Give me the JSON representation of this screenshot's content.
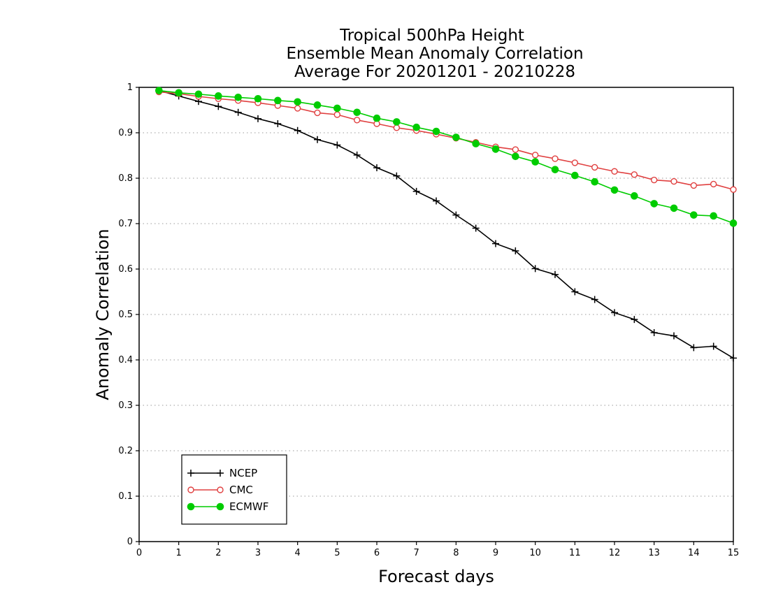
{
  "chart_data": {
    "type": "line",
    "title_lines": [
      "Tropical 500hPa Height",
      "Ensemble Mean Anomaly Correlation",
      "Average For 20201201 - 20210228"
    ],
    "xlabel": "Forecast days",
    "ylabel": "Anomaly Correlation",
    "xlim": [
      0,
      15
    ],
    "ylim": [
      0,
      1
    ],
    "x_ticks": [
      "0",
      "1",
      "2",
      "3",
      "4",
      "5",
      "6",
      "7",
      "8",
      "9",
      "10",
      "11",
      "12",
      "13",
      "14",
      "15"
    ],
    "y_ticks": [
      "0",
      "0.1",
      "0.2",
      "0.3",
      "0.4",
      "0.5",
      "0.6",
      "0.7",
      "0.8",
      "0.9",
      "1"
    ],
    "grid": "horizontal dotted",
    "legend_position": "bottom-left",
    "x": [
      0.5,
      1,
      1.5,
      2,
      2.5,
      3,
      3.5,
      4,
      4.5,
      5,
      5.5,
      6,
      6.5,
      7,
      7.5,
      8,
      8.5,
      9,
      9.5,
      10,
      10.5,
      11,
      11.5,
      12,
      12.5,
      13,
      13.5,
      14,
      14.5,
      15
    ],
    "series": [
      {
        "name": "NCEP",
        "color": "#000000",
        "marker": "plus",
        "values": [
          0.993,
          0.981,
          0.969,
          0.958,
          0.945,
          0.931,
          0.92,
          0.905,
          0.885,
          0.873,
          0.851,
          0.823,
          0.805,
          0.771,
          0.75,
          0.719,
          0.69,
          0.656,
          0.64,
          0.601,
          0.588,
          0.55,
          0.533,
          0.504,
          0.489,
          0.46,
          0.453,
          0.427,
          0.43,
          0.404
        ]
      },
      {
        "name": "CMC",
        "color": "#e04040",
        "marker": "open-circle",
        "values": [
          0.99,
          0.986,
          0.98,
          0.975,
          0.971,
          0.966,
          0.96,
          0.954,
          0.944,
          0.94,
          0.928,
          0.92,
          0.911,
          0.905,
          0.897,
          0.888,
          0.879,
          0.869,
          0.863,
          0.851,
          0.843,
          0.834,
          0.824,
          0.815,
          0.808,
          0.796,
          0.793,
          0.784,
          0.787,
          0.775
        ]
      },
      {
        "name": "ECMWF",
        "color": "#00cc00",
        "marker": "filled-circle",
        "values": [
          0.993,
          0.988,
          0.985,
          0.981,
          0.978,
          0.975,
          0.971,
          0.968,
          0.961,
          0.954,
          0.945,
          0.932,
          0.924,
          0.912,
          0.903,
          0.89,
          0.876,
          0.864,
          0.848,
          0.836,
          0.819,
          0.806,
          0.792,
          0.774,
          0.761,
          0.744,
          0.734,
          0.719,
          0.717,
          0.701
        ]
      }
    ]
  }
}
